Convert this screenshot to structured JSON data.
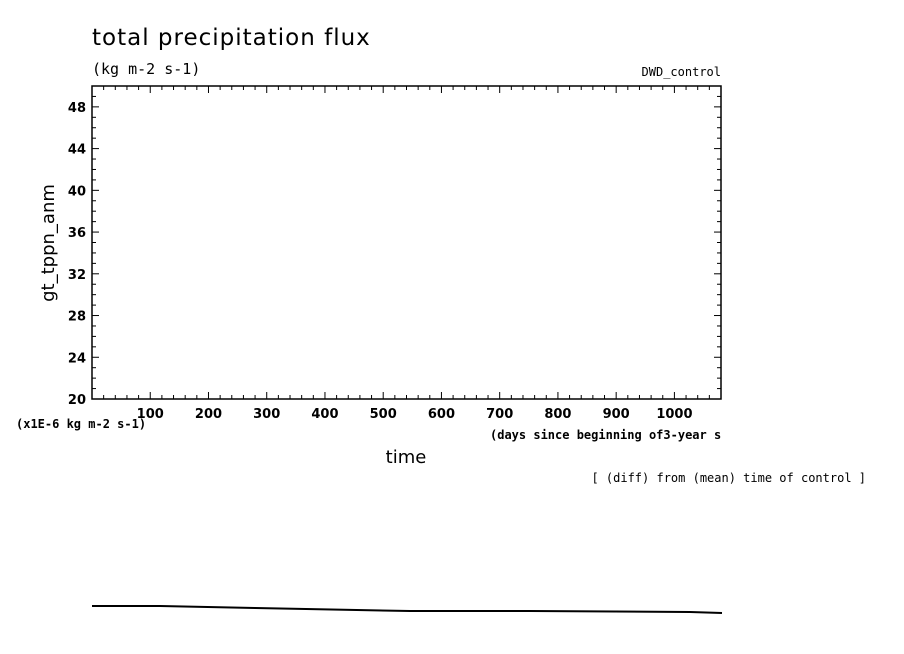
{
  "chart_data": {
    "type": "line",
    "title": "total precipitation flux",
    "units": "(kg m-2 s-1)",
    "dataset_label": "DWD_control",
    "ylabel": "gt_tppn_anm",
    "xlabel": "time",
    "x_units_note": "(days since beginning of3-year s",
    "y_scale_note": "(x1E-6 kg m-2 s-1)",
    "footer_note": "[ (diff) from (mean) time of control ]",
    "xlim": [
      0,
      1080
    ],
    "ylim": [
      20,
      50
    ],
    "x_ticks": [
      "100",
      "200",
      "300",
      "400",
      "500",
      "600",
      "700",
      "800",
      "900",
      "1000"
    ],
    "y_ticks": [
      "20",
      "24",
      "28",
      "32",
      "36",
      "40",
      "44",
      "48"
    ],
    "series": [
      {
        "x": [],
        "values": []
      }
    ],
    "grid": false,
    "legend": "none"
  }
}
